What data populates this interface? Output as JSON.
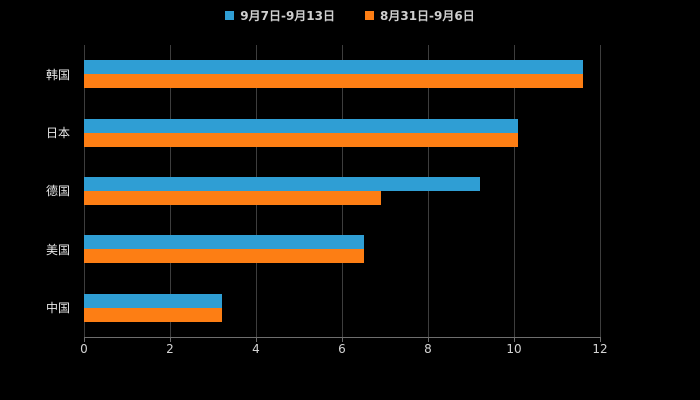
{
  "chart_data": {
    "type": "bar",
    "orientation": "horizontal",
    "title": "",
    "xlabel": "",
    "ylabel": "",
    "background": "#000000",
    "grid": true,
    "legend_position": "top",
    "categories": [
      "韩国",
      "日本",
      "德国",
      "美国",
      "中国"
    ],
    "series": [
      {
        "name": "9月7日-9月13日",
        "color": "#2F9ED4",
        "values": [
          11.6,
          10.1,
          9.2,
          6.5,
          3.2
        ]
      },
      {
        "name": "8月31日-9月6日",
        "color": "#FD7E14",
        "values": [
          11.6,
          10.1,
          6.9,
          6.5,
          3.2
        ]
      }
    ],
    "xlim": [
      0,
      12
    ],
    "xticks": [
      0,
      2,
      4,
      6,
      8,
      10,
      12
    ]
  }
}
